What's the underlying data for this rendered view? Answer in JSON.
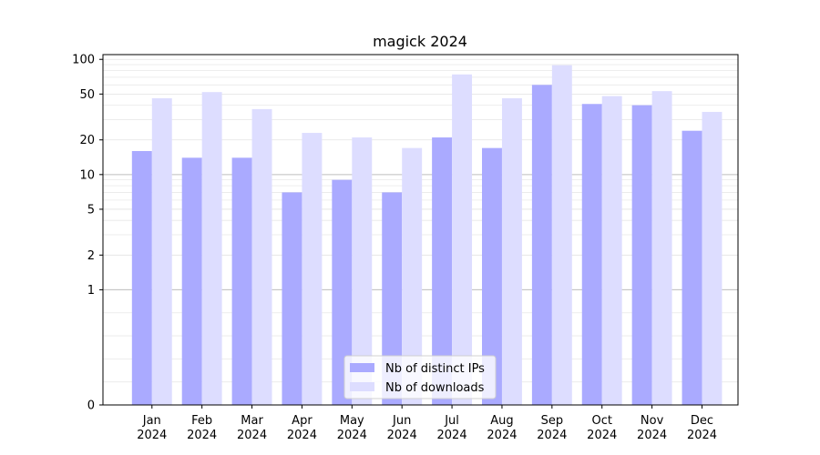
{
  "chart_data": {
    "type": "bar",
    "title": "magick 2024",
    "xlabel": "",
    "ylabel": "",
    "y_scale": "symlog",
    "ylim": [
      0,
      110
    ],
    "yticks": [
      0,
      1,
      2,
      5,
      10,
      20,
      50,
      100
    ],
    "ytick_labels": [
      "0",
      "1",
      "2",
      "5",
      "10",
      "20",
      "50",
      "100"
    ],
    "grid": true,
    "legend_position": "bottom-center",
    "categories": [
      [
        "Jan",
        "2024"
      ],
      [
        "Feb",
        "2024"
      ],
      [
        "Mar",
        "2024"
      ],
      [
        "Apr",
        "2024"
      ],
      [
        "May",
        "2024"
      ],
      [
        "Jun",
        "2024"
      ],
      [
        "Jul",
        "2024"
      ],
      [
        "Aug",
        "2024"
      ],
      [
        "Sep",
        "2024"
      ],
      [
        "Oct",
        "2024"
      ],
      [
        "Nov",
        "2024"
      ],
      [
        "Dec",
        "2024"
      ]
    ],
    "series": [
      {
        "name": "Nb of distinct IPs",
        "color": "#aaaaff",
        "values": [
          16,
          14,
          14,
          7,
          9,
          7,
          21,
          17,
          60,
          41,
          40,
          24
        ]
      },
      {
        "name": "Nb of downloads",
        "color": "#ddddff",
        "values": [
          46,
          52,
          37,
          23,
          21,
          17,
          74,
          46,
          89,
          48,
          53,
          35
        ]
      }
    ]
  }
}
